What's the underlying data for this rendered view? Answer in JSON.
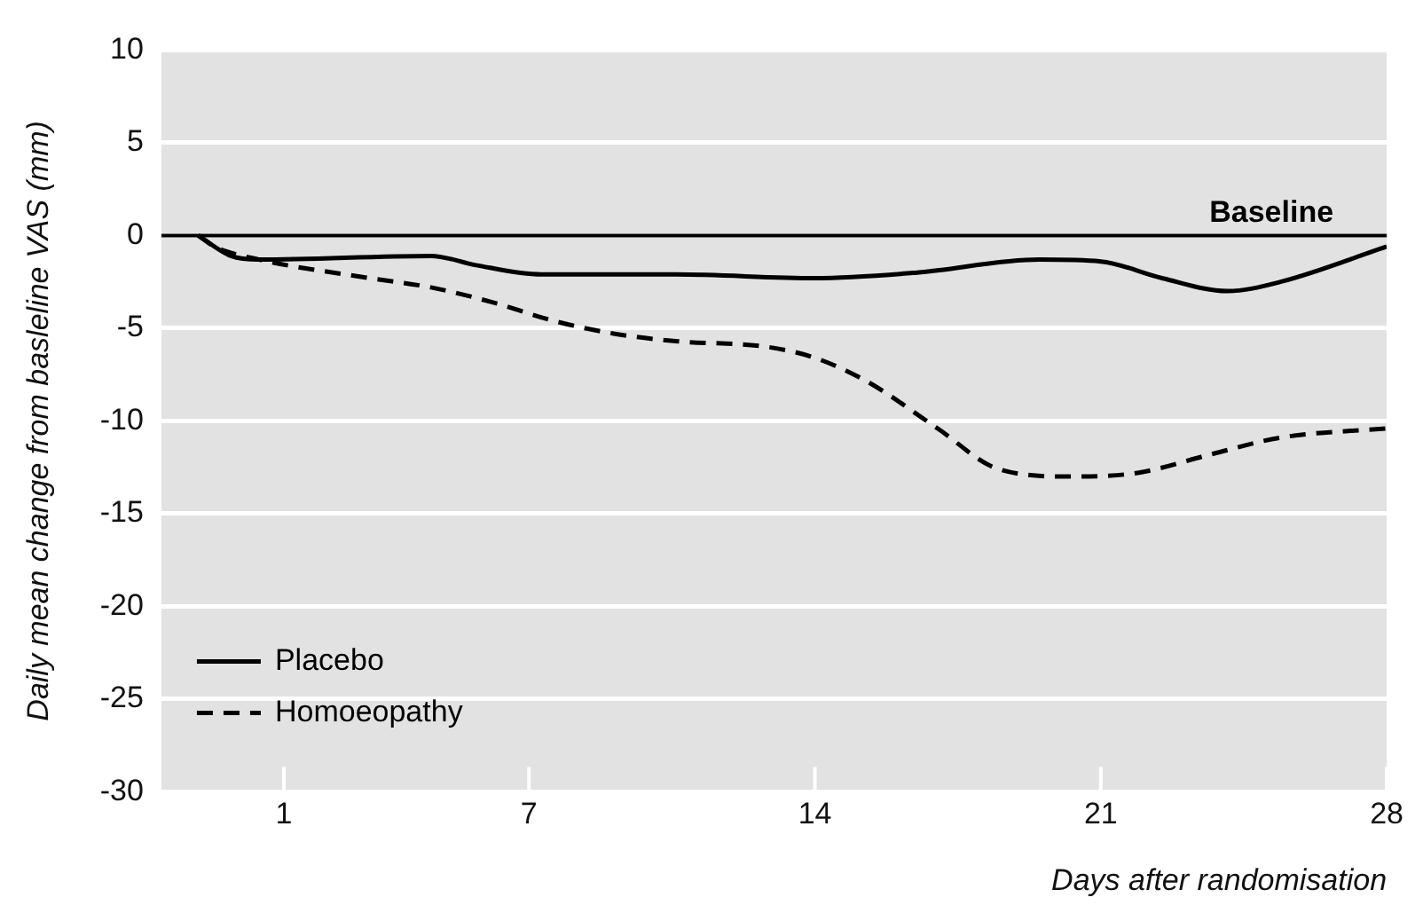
{
  "chart_data": {
    "type": "line",
    "xlabel": "Days after randomisation",
    "ylabel": "Daily mean change from basleline VAS (mm)",
    "xlim": [
      -2,
      28
    ],
    "xticks": [
      1,
      7,
      14,
      21,
      28
    ],
    "ylim": [
      -30,
      10
    ],
    "yticks": [
      10,
      5,
      0,
      -5,
      -10,
      -15,
      -20,
      -25,
      -30
    ],
    "grid": "y",
    "legend": "bottom left",
    "marker": "none",
    "ref_lines": [
      {
        "axis": "y",
        "value": 0,
        "label": "Baseline",
        "color": "#000000"
      }
    ],
    "series": [
      {
        "name": "Placebo",
        "color": "#000000",
        "line_style": "solid",
        "x": [
          -1.1,
          -0.3,
          0.4,
          4.6,
          5.7,
          7.3,
          10.6,
          14,
          16.5,
          19.5,
          21,
          22.5,
          24.1,
          25.4,
          28
        ],
        "values": [
          0,
          -1.1,
          -1.3,
          -1.1,
          -1.6,
          -2.1,
          -2.1,
          -2.3,
          -2,
          -1.3,
          -1.4,
          -2.3,
          -3,
          -2.5,
          -0.6
        ]
      },
      {
        "name": "Homoeopathy",
        "color": "#000000",
        "line_style": "dashed",
        "x": [
          -1.1,
          -0.7,
          0.4,
          3.1,
          4.6,
          6.1,
          7.6,
          9.1,
          10.6,
          12.8,
          14,
          15.3,
          17,
          18.5,
          20.3,
          21.9,
          23.7,
          25.4,
          28
        ],
        "values": [
          0,
          -0.6,
          -1.3,
          -2.3,
          -2.8,
          -3.6,
          -4.6,
          -5.3,
          -5.7,
          -6,
          -6.6,
          -7.9,
          -10.4,
          -12.6,
          -13,
          -12.8,
          -11.8,
          -10.9,
          -10.4
        ]
      }
    ]
  }
}
